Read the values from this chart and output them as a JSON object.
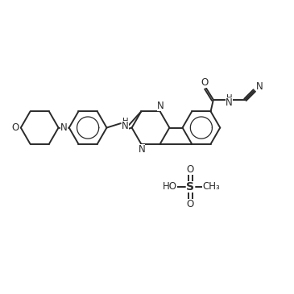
{
  "background_color": "#ffffff",
  "line_color": "#2a2a2a",
  "line_width": 1.4,
  "font_size": 8.5,
  "fig_width": 3.65,
  "fig_height": 3.65,
  "dpi": 100,
  "xlim": [
    0,
    12
  ],
  "ylim": [
    0,
    12
  ]
}
